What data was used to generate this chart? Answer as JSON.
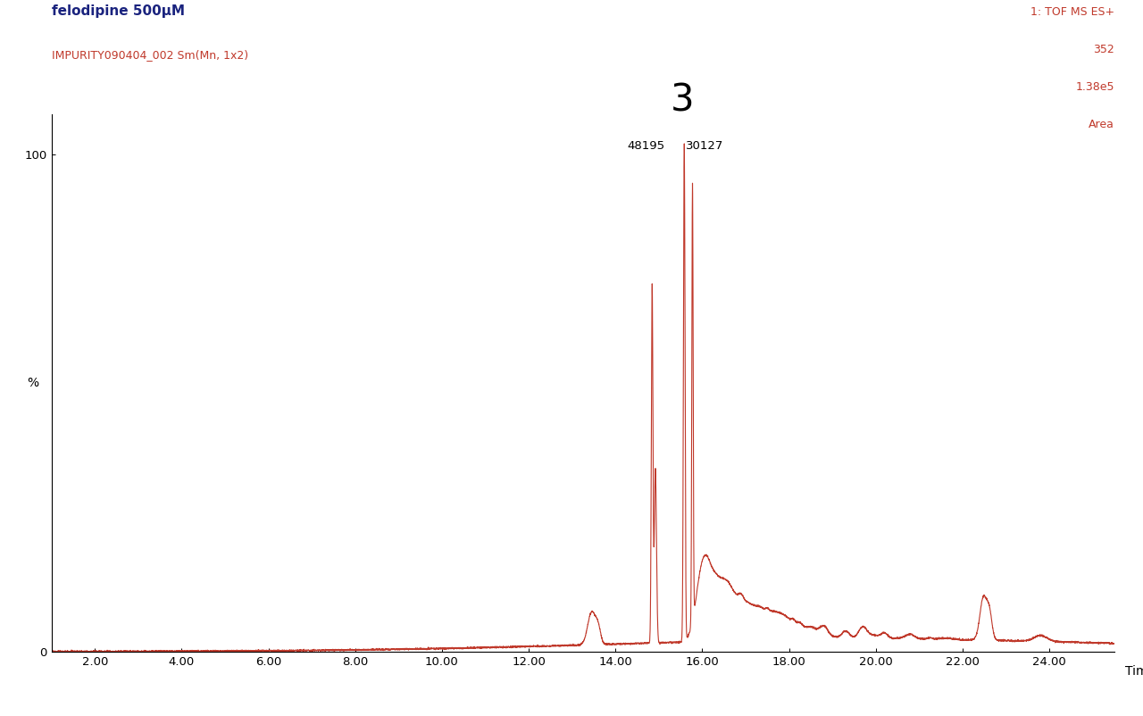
{
  "title_line1": "felodipine 500μM",
  "title_line2": "IMPURITY090404_002 Sm(Mn, 1x2)",
  "top_right_lines": [
    "1: TOF MS ES+",
    "352",
    "1.38e5",
    "Area"
  ],
  "ylabel": "%",
  "xlabel": "Time",
  "xlim": [
    1.0,
    25.5
  ],
  "ylim": [
    0,
    108
  ],
  "xticks": [
    2.0,
    4.0,
    6.0,
    8.0,
    10.0,
    12.0,
    14.0,
    16.0,
    18.0,
    20.0,
    22.0,
    24.0
  ],
  "yticks": [
    0,
    100
  ],
  "line_color": "#c0392b",
  "background_color": "#ffffff",
  "title_color_1": "#1a237e",
  "title_color_2": "#c0392b",
  "top_right_color": "#c0392b"
}
